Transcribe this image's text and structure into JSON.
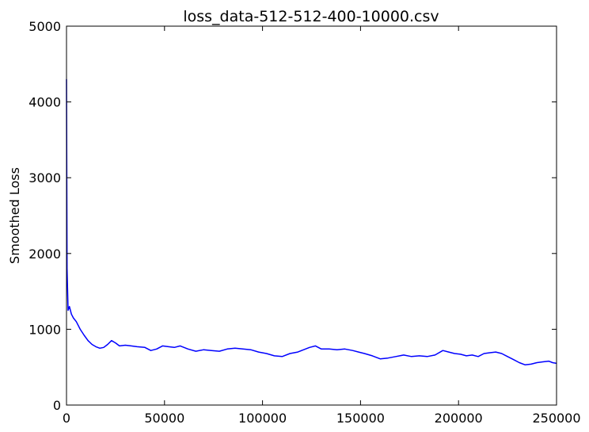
{
  "chart_data": {
    "type": "line",
    "title": "loss_data-512-512-400-10000.csv",
    "xlabel": "",
    "ylabel": "Smoothed Loss",
    "xlim": [
      0,
      250000
    ],
    "ylim": [
      0,
      5000
    ],
    "xticks": [
      0,
      50000,
      100000,
      150000,
      200000,
      250000
    ],
    "yticks": [
      0,
      1000,
      2000,
      3000,
      4000,
      5000
    ],
    "xtick_labels": [
      "0",
      "50000",
      "100000",
      "150000",
      "200000",
      "250000"
    ],
    "ytick_labels": [
      "0",
      "1000",
      "2000",
      "3000",
      "4000",
      "5000"
    ],
    "grid": false,
    "line_color": "#0000ff",
    "series": [
      {
        "x": [
          0,
          300,
          800,
          1500,
          2500,
          3500,
          5000,
          7000,
          9000,
          11000,
          13000,
          15000,
          17000,
          19000,
          21000,
          23000,
          25000,
          27000,
          30000,
          33000,
          36000,
          40000,
          43000,
          46000,
          49000,
          52000,
          55000,
          58000,
          62000,
          66000,
          70000,
          74000,
          78000,
          82000,
          86000,
          90000,
          94000,
          98000,
          102000,
          106000,
          110000,
          114000,
          118000,
          121000,
          124000,
          127000,
          130000,
          134000,
          138000,
          142000,
          146000,
          149000,
          152000,
          156000,
          160000,
          164000,
          168000,
          172000,
          176000,
          180000,
          184000,
          188000,
          192000,
          195000,
          198000,
          201000,
          204000,
          207000,
          210000,
          213000,
          216000,
          219000,
          222000,
          225000,
          228000,
          231000,
          234000,
          237000,
          240000,
          243000,
          246000,
          248000,
          250000
        ],
        "y": [
          4300,
          1800,
          1250,
          1300,
          1200,
          1150,
          1100,
          1000,
          920,
          850,
          800,
          770,
          750,
          760,
          800,
          850,
          820,
          780,
          790,
          780,
          770,
          760,
          720,
          740,
          780,
          770,
          760,
          780,
          740,
          710,
          730,
          720,
          710,
          740,
          750,
          740,
          730,
          700,
          680,
          650,
          640,
          680,
          700,
          730,
          760,
          780,
          740,
          740,
          730,
          740,
          720,
          700,
          680,
          650,
          610,
          620,
          640,
          660,
          640,
          650,
          640,
          660,
          720,
          700,
          680,
          670,
          650,
          660,
          640,
          680,
          690,
          700,
          680,
          640,
          600,
          560,
          530,
          540,
          560,
          570,
          580,
          560,
          550
        ]
      }
    ]
  }
}
